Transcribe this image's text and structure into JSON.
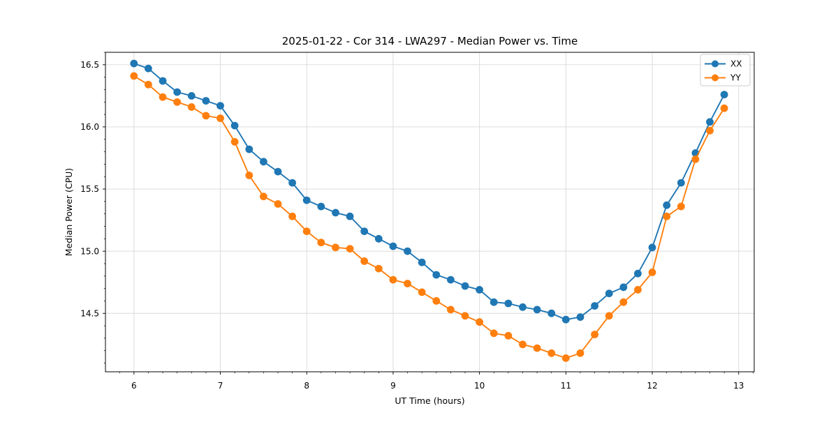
{
  "figure": {
    "background": "#ffffff",
    "frame_color": "#000000",
    "grid_color": "#d9d9d9"
  },
  "chart_data": {
    "type": "line",
    "title": "2025-01-22 - Cor 314 - LWA297 - Median Power vs. Time",
    "xlabel": "UT Time (hours)",
    "ylabel": "Median Power (CPU)",
    "xlim": [
      5.67,
      13.18
    ],
    "ylim": [
      14.03,
      16.6
    ],
    "x_ticks": [
      6,
      7,
      8,
      9,
      10,
      11,
      12,
      13
    ],
    "x_tick_labels": [
      "6",
      "7",
      "8",
      "9",
      "10",
      "11",
      "12",
      "13"
    ],
    "y_ticks": [
      14.5,
      15.0,
      15.5,
      16.0,
      16.5
    ],
    "y_tick_labels": [
      "14.5",
      "15.0",
      "15.5",
      "16.0",
      "16.5"
    ],
    "x_minor_step": 0.16667,
    "y_minor_step": 0.1,
    "grid": true,
    "legend_position": "upper right",
    "x": [
      6.0,
      6.1667,
      6.3333,
      6.5,
      6.6667,
      6.8333,
      7.0,
      7.1667,
      7.3333,
      7.5,
      7.6667,
      7.8333,
      8.0,
      8.1667,
      8.3333,
      8.5,
      8.6667,
      8.8333,
      9.0,
      9.1667,
      9.3333,
      9.5,
      9.6667,
      9.8333,
      10.0,
      10.1667,
      10.3333,
      10.5,
      10.6667,
      10.8333,
      11.0,
      11.1667,
      11.3333,
      11.5,
      11.6667,
      11.8333,
      12.0,
      12.1667,
      12.3333,
      12.5,
      12.6667,
      12.8333
    ],
    "series": [
      {
        "name": "XX",
        "color": "#1f77b4",
        "values": [
          16.51,
          16.47,
          16.37,
          16.28,
          16.25,
          16.21,
          16.17,
          16.01,
          15.82,
          15.72,
          15.64,
          15.55,
          15.41,
          15.36,
          15.31,
          15.28,
          15.16,
          15.1,
          15.04,
          15.0,
          14.91,
          14.81,
          14.77,
          14.72,
          14.69,
          14.59,
          14.58,
          14.55,
          14.53,
          14.5,
          14.45,
          14.47,
          14.56,
          14.66,
          14.71,
          14.82,
          15.03,
          15.37,
          15.55,
          15.79,
          16.04,
          16.26
        ]
      },
      {
        "name": "YY",
        "color": "#ff7f0e",
        "values": [
          16.41,
          16.34,
          16.24,
          16.2,
          16.16,
          16.09,
          16.07,
          15.88,
          15.61,
          15.44,
          15.38,
          15.28,
          15.16,
          15.07,
          15.03,
          15.02,
          14.92,
          14.86,
          14.77,
          14.74,
          14.67,
          14.6,
          14.53,
          14.48,
          14.43,
          14.34,
          14.32,
          14.25,
          14.22,
          14.18,
          14.14,
          14.18,
          14.33,
          14.48,
          14.59,
          14.69,
          14.83,
          15.28,
          15.36,
          15.74,
          15.97,
          16.15
        ]
      }
    ]
  }
}
